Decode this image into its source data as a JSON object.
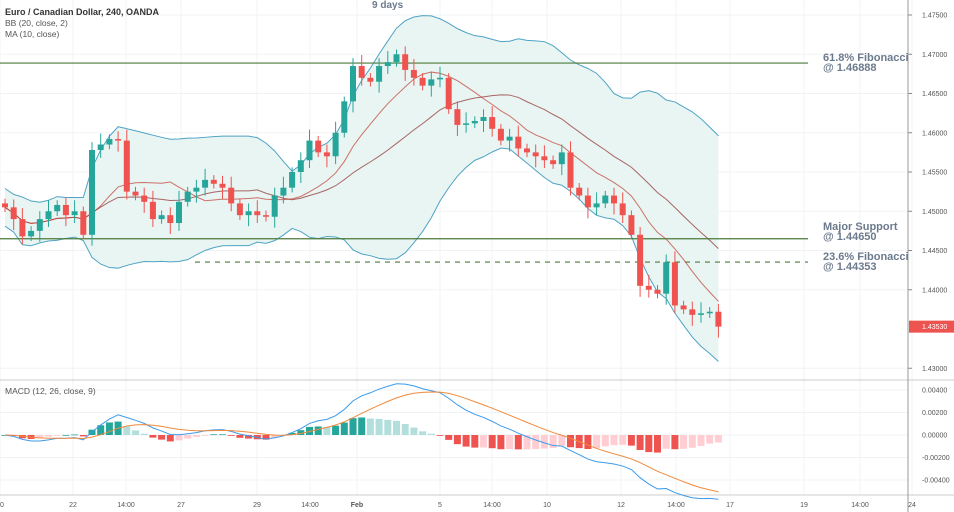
{
  "header": {
    "title": "Euro / Canadian Dollar, 240, OANDA",
    "bb": "BB (20, close, 2)",
    "ma": "MA (10, close)",
    "top_note": "9 days"
  },
  "macd_label": "MACD (12, 26, close, 9)",
  "annotations": [
    {
      "line1": "61.8% Fibonacci",
      "line2": "@ 1.46888",
      "price": 1.46888,
      "style": "solid"
    },
    {
      "line1": "Major Support",
      "line2": "@ 1.44650",
      "price": 1.4465,
      "style": "solid"
    },
    {
      "line1": "23.6% Fibonacci",
      "line2": "@ 1.44353",
      "price": 1.44353,
      "style": "dashed"
    }
  ],
  "last_price": "1.43530",
  "colors": {
    "up": "#26a69a",
    "down": "#ef5350",
    "bb": "#4fa3c4",
    "bb_fill": "#e8f5f3",
    "ma": "#c0392b",
    "level": "#4a7a3a",
    "macd": "#3d9be9",
    "signal": "#f08a3c"
  },
  "chart_data": {
    "type": "candlestick",
    "price_axis": {
      "ticks": [
        "1.47500",
        "1.47000",
        "1.46500",
        "1.46000",
        "1.45500",
        "1.45000",
        "1.44500",
        "1.44000",
        "1.43000"
      ],
      "range": [
        1.429,
        1.477
      ]
    },
    "macd_axis": {
      "ticks": [
        "0.00400",
        "0.00200",
        "0.00000",
        "-0.00200",
        "-0.00400"
      ]
    },
    "time_axis": [
      "20",
      "22",
      "14:00",
      "27",
      "29",
      "14:00",
      "Feb",
      "5",
      "14:00",
      "10",
      "12",
      "14:00",
      "17",
      "19",
      "14:00",
      "24"
    ],
    "closes": [
      1.4505,
      1.449,
      1.4468,
      1.4475,
      1.449,
      1.45,
      1.4508,
      1.4495,
      1.45,
      1.447,
      1.4578,
      1.4585,
      1.4592,
      1.459,
      1.4525,
      1.452,
      1.4512,
      1.449,
      1.4495,
      1.4485,
      1.4512,
      1.4525,
      1.453,
      1.454,
      1.4535,
      1.453,
      1.451,
      1.4495,
      1.45,
      1.4495,
      1.4493,
      1.452,
      1.453,
      1.455,
      1.4565,
      1.459,
      1.4575,
      1.457,
      1.46,
      1.464,
      1.4685,
      1.467,
      1.4665,
      1.4685,
      1.469,
      1.47,
      1.468,
      1.467,
      1.466,
      1.4668,
      1.467,
      1.463,
      1.461,
      1.4612,
      1.4615,
      1.462,
      1.4605,
      1.459,
      1.4595,
      1.458,
      1.4575,
      1.457,
      1.4565,
      1.456,
      1.4575,
      1.453,
      1.452,
      1.4505,
      1.451,
      1.452,
      1.451,
      1.4495,
      1.447,
      1.4405,
      1.44,
      1.4395,
      1.4435,
      1.438,
      1.4375,
      1.4368,
      1.437,
      1.4372,
      1.4353
    ]
  }
}
